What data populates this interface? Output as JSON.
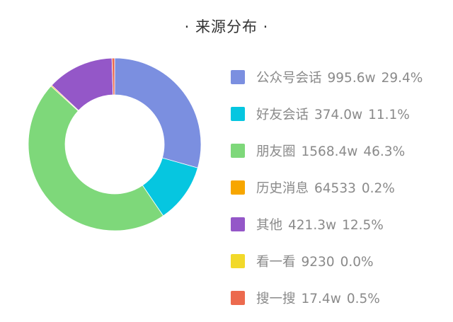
{
  "chart_data": {
    "type": "pie",
    "title": "·  来源分布  ·",
    "donut": true,
    "legend_position": "right",
    "slices": [
      {
        "name": "公众号会话",
        "value_label": "995.6w",
        "percent_label": "29.4%",
        "percent": 29.4,
        "color": "#7b8fe0"
      },
      {
        "name": "好友会话",
        "value_label": "374.0w",
        "percent_label": "11.1%",
        "percent": 11.1,
        "color": "#06c6e0"
      },
      {
        "name": "朋友圈",
        "value_label": "1568.4w",
        "percent_label": "46.3%",
        "percent": 46.3,
        "color": "#7ed87a"
      },
      {
        "name": "历史消息",
        "value_label": "64533",
        "percent_label": "0.2%",
        "percent": 0.2,
        "color": "#f7a600"
      },
      {
        "name": "其他",
        "value_label": "421.3w",
        "percent_label": "12.5%",
        "percent": 12.5,
        "color": "#9457c8"
      },
      {
        "name": "看一看",
        "value_label": "9230",
        "percent_label": "0.0%",
        "percent": 0.0,
        "color": "#f2d92a"
      },
      {
        "name": "搜一搜",
        "value_label": "17.4w",
        "percent_label": "0.5%",
        "percent": 0.5,
        "color": "#ec6a4e"
      }
    ]
  }
}
